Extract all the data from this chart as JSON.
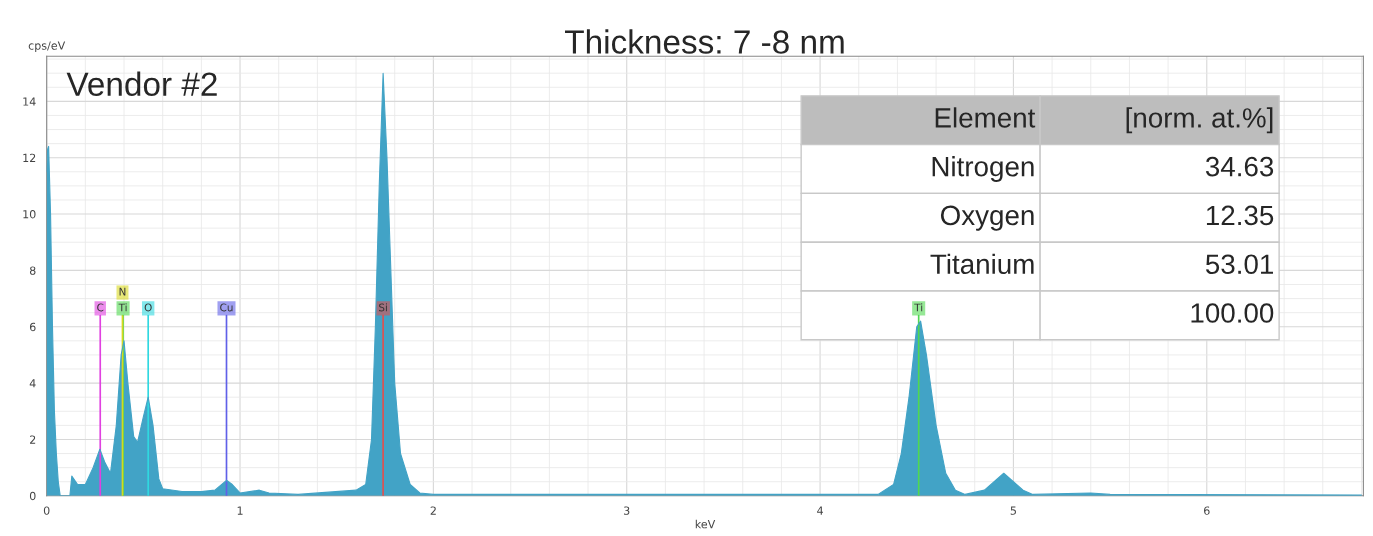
{
  "chart_data": {
    "type": "area",
    "title": "Thickness: 7 -8 nm",
    "xlabel": "keV",
    "ylabel": "cps/eV",
    "x": [
      0.0,
      0.005,
      0.01,
      0.02,
      0.03,
      0.04,
      0.05,
      0.06,
      0.07,
      0.12,
      0.13,
      0.16,
      0.2,
      0.24,
      0.275,
      0.3,
      0.33,
      0.36,
      0.385,
      0.4,
      0.42,
      0.45,
      0.47,
      0.5,
      0.525,
      0.55,
      0.58,
      0.6,
      0.7,
      0.8,
      0.87,
      0.93,
      0.96,
      1.0,
      1.1,
      1.15,
      1.3,
      1.6,
      1.65,
      1.68,
      1.7,
      1.72,
      1.74,
      1.76,
      1.78,
      1.8,
      1.83,
      1.88,
      1.93,
      2.0,
      3.0,
      4.3,
      4.38,
      4.42,
      4.46,
      4.5,
      4.52,
      4.55,
      4.6,
      4.65,
      4.7,
      4.75,
      4.85,
      4.9,
      4.95,
      5.0,
      5.05,
      5.1,
      5.4,
      5.5,
      6.8
    ],
    "series": [
      {
        "color": "#42a3c6",
        "values": [
          11.5,
          12.3,
          12.4,
          10.0,
          6.0,
          3.0,
          1.5,
          0.5,
          0.0,
          0.0,
          0.7,
          0.4,
          0.4,
          1.0,
          1.65,
          1.2,
          0.8,
          2.5,
          5.0,
          5.5,
          4.0,
          2.1,
          1.9,
          2.8,
          3.5,
          2.5,
          0.6,
          0.25,
          0.15,
          0.15,
          0.2,
          0.55,
          0.4,
          0.1,
          0.2,
          0.1,
          0.05,
          0.2,
          0.4,
          2.0,
          6.0,
          11.0,
          15.0,
          12.0,
          8.0,
          4.0,
          1.5,
          0.4,
          0.1,
          0.05,
          0.05,
          0.05,
          0.4,
          1.5,
          3.5,
          6.0,
          6.2,
          5.0,
          2.5,
          0.8,
          0.2,
          0.05,
          0.2,
          0.5,
          0.8,
          0.5,
          0.2,
          0.05,
          0.1,
          0.05,
          0.03
        ]
      }
    ],
    "xlim": [
      0,
      6.81
    ],
    "ylim": [
      0,
      15.6
    ],
    "xticks": [
      0,
      1,
      2,
      3,
      4,
      5,
      6
    ],
    "yticks": [
      0,
      2,
      4,
      6,
      8,
      10,
      12,
      14
    ],
    "grid": true,
    "ref_lines": [
      {
        "axis": "x",
        "value": 0.277,
        "label": "C",
        "color": "#e040e0"
      },
      {
        "axis": "x",
        "value": 0.395,
        "label": "Ti",
        "color": "#50d850"
      },
      {
        "axis": "x",
        "value": 0.392,
        "label": "N",
        "color": "#d8d820"
      },
      {
        "axis": "x",
        "value": 0.525,
        "label": "O",
        "color": "#30d8e0"
      },
      {
        "axis": "x",
        "value": 0.93,
        "label": "Cu",
        "color": "#6060e8"
      },
      {
        "axis": "x",
        "value": 1.74,
        "label": "Si",
        "color": "#e05050"
      },
      {
        "axis": "x",
        "value": 4.51,
        "label": "Ti",
        "color": "#50d850"
      }
    ],
    "annotations": [
      "Vendor #2",
      "Element",
      "[norm. at.%]",
      "Nitrogen",
      "34.63",
      "Oxygen",
      "12.35",
      "Titanium",
      "53.01",
      "100.00"
    ]
  }
}
